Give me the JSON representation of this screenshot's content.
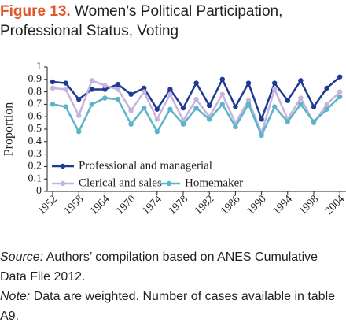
{
  "chart_data": {
    "type": "line",
    "title_label": "Figure 13.",
    "title": "Women’s Political Participation, Professional Status, Voting",
    "ylabel": "Proportion",
    "categories": [
      "1952",
      null,
      "1958",
      null,
      "1964",
      null,
      "1970",
      null,
      "1974",
      null,
      "1978",
      null,
      "1982",
      null,
      "1986",
      null,
      "1990",
      null,
      "1994",
      null,
      "1998",
      null,
      "2004"
    ],
    "series": [
      {
        "name": "Professional and managerial",
        "color": "#1f3a93",
        "values": [
          0.88,
          0.87,
          0.74,
          0.82,
          0.82,
          0.86,
          0.78,
          0.83,
          0.66,
          0.82,
          0.67,
          0.87,
          0.69,
          0.9,
          0.68,
          0.87,
          0.58,
          0.87,
          0.73,
          0.89,
          0.68,
          0.83,
          0.92
        ]
      },
      {
        "name": "Clerical and sales",
        "color": "#c7b3dc",
        "values": [
          0.83,
          0.82,
          0.61,
          0.89,
          0.85,
          0.82,
          0.65,
          0.8,
          0.58,
          0.78,
          0.57,
          0.74,
          0.6,
          0.78,
          0.55,
          0.73,
          0.47,
          0.82,
          0.58,
          0.75,
          0.55,
          0.7,
          0.8
        ]
      },
      {
        "name": "Homemaker",
        "color": "#5bb5c8",
        "values": [
          0.7,
          0.68,
          0.48,
          0.7,
          0.75,
          0.74,
          0.54,
          0.67,
          0.48,
          0.66,
          0.54,
          0.67,
          0.58,
          0.7,
          0.52,
          0.7,
          0.45,
          0.68,
          0.56,
          0.7,
          0.56,
          0.66,
          0.76
        ]
      }
    ],
    "ylim": [
      0,
      1
    ],
    "yticks": [
      0,
      0.1,
      0.2,
      0.3,
      0.4,
      0.5,
      0.6,
      0.7,
      0.8,
      0.9,
      1
    ],
    "legend": "lower center",
    "source_label": "Source:",
    "source": "Authors’ compilation based on ANES Cumulative Data File 2012.",
    "note_label": "Note:",
    "note": "Data are weighted. Number of cases available in table A9."
  }
}
